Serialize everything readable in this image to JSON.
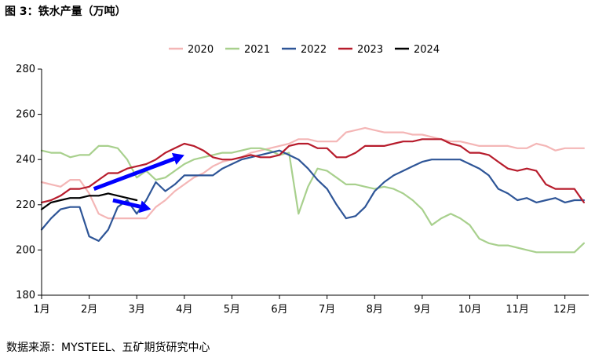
{
  "header": {
    "title": "图 3：铁水产量（万吨）"
  },
  "footer": {
    "source": "数据来源：MYSTEEL、五矿期货研究中心"
  },
  "chart_data": {
    "type": "line",
    "title": "图 3：铁水产量（万吨）",
    "xlabel": "",
    "ylabel": "",
    "ylim": [
      180,
      280
    ],
    "yticks": [
      180,
      200,
      220,
      240,
      260,
      280
    ],
    "xlim": [
      1,
      12.5
    ],
    "xticks": [
      "1月",
      "2月",
      "3月",
      "4月",
      "5月",
      "6月",
      "7月",
      "8月",
      "9月",
      "10月",
      "11月",
      "12月"
    ],
    "grid": false,
    "legend_position": "top",
    "series": [
      {
        "name": "2020",
        "color": "#F4B6B6",
        "x": [
          1,
          1.2,
          1.4,
          1.6,
          1.8,
          2.0,
          2.2,
          2.4,
          2.6,
          2.8,
          3.0,
          3.2,
          3.4,
          3.6,
          3.8,
          4.0,
          4.2,
          4.4,
          4.6,
          4.8,
          5.0,
          5.2,
          5.4,
          5.6,
          5.8,
          6.0,
          6.2,
          6.4,
          6.6,
          6.8,
          7.0,
          7.2,
          7.4,
          7.6,
          7.8,
          8.0,
          8.2,
          8.4,
          8.6,
          8.8,
          9.0,
          9.2,
          9.4,
          9.6,
          9.8,
          10.0,
          10.2,
          10.4,
          10.6,
          10.8,
          11.0,
          11.2,
          11.4,
          11.6,
          11.8,
          12.0,
          12.2,
          12.4
        ],
        "y": [
          230,
          229,
          228,
          231,
          231,
          225,
          216,
          214,
          214,
          214,
          214,
          214,
          219,
          222,
          226,
          229,
          232,
          234,
          237,
          239,
          240,
          241,
          243,
          244,
          245,
          246,
          247,
          249,
          249,
          248,
          248,
          248,
          252,
          253,
          254,
          253,
          252,
          252,
          252,
          251,
          251,
          250,
          249,
          248,
          248,
          247,
          246,
          246,
          246,
          246,
          245,
          245,
          247,
          246,
          244,
          245,
          245,
          245
        ]
      },
      {
        "name": "2021",
        "color": "#A8D08D",
        "x": [
          1,
          1.2,
          1.4,
          1.6,
          1.8,
          2.0,
          2.2,
          2.4,
          2.6,
          2.8,
          3.0,
          3.2,
          3.4,
          3.6,
          3.8,
          4.0,
          4.2,
          4.4,
          4.6,
          4.8,
          5.0,
          5.2,
          5.4,
          5.6,
          5.8,
          6.0,
          6.2,
          6.4,
          6.6,
          6.8,
          7.0,
          7.2,
          7.4,
          7.6,
          7.8,
          8.0,
          8.2,
          8.4,
          8.6,
          8.8,
          9.0,
          9.2,
          9.4,
          9.6,
          9.8,
          10.0,
          10.2,
          10.4,
          10.6,
          10.8,
          11.0,
          11.2,
          11.4,
          11.6,
          11.8,
          12.0,
          12.2,
          12.4
        ],
        "y": [
          244,
          243,
          243,
          241,
          242,
          242,
          246,
          246,
          245,
          240,
          232,
          235,
          231,
          232,
          235,
          238,
          240,
          241,
          242,
          243,
          243,
          244,
          245,
          245,
          244,
          242,
          243,
          216,
          228,
          236,
          235,
          232,
          229,
          229,
          228,
          227,
          228,
          227,
          225,
          222,
          218,
          211,
          214,
          216,
          214,
          211,
          205,
          203,
          202,
          202,
          201,
          200,
          199,
          199,
          199,
          199,
          199,
          203
        ]
      },
      {
        "name": "2022",
        "color": "#2E5597",
        "x": [
          1,
          1.2,
          1.4,
          1.6,
          1.8,
          2.0,
          2.2,
          2.4,
          2.6,
          2.8,
          3.0,
          3.2,
          3.4,
          3.6,
          3.8,
          4.0,
          4.2,
          4.4,
          4.6,
          4.8,
          5.0,
          5.2,
          5.4,
          5.6,
          5.8,
          6.0,
          6.2,
          6.4,
          6.6,
          6.8,
          7.0,
          7.2,
          7.4,
          7.6,
          7.8,
          8.0,
          8.2,
          8.4,
          8.6,
          8.8,
          9.0,
          9.2,
          9.4,
          9.6,
          9.8,
          10.0,
          10.2,
          10.4,
          10.6,
          10.8,
          11.0,
          11.2,
          11.4,
          11.6,
          11.8,
          12.0,
          12.2,
          12.4
        ],
        "y": [
          209,
          214,
          218,
          219,
          219,
          206,
          204,
          209,
          219,
          222,
          216,
          222,
          230,
          226,
          229,
          233,
          233,
          233,
          233,
          236,
          238,
          240,
          241,
          242,
          243,
          244,
          242,
          240,
          236,
          231,
          227,
          220,
          214,
          215,
          219,
          226,
          230,
          233,
          235,
          237,
          239,
          240,
          240,
          240,
          240,
          238,
          236,
          233,
          227,
          225,
          222,
          223,
          221,
          222,
          223,
          221,
          222,
          222
        ]
      },
      {
        "name": "2023",
        "color": "#B71C2C",
        "x": [
          1,
          1.2,
          1.4,
          1.6,
          1.8,
          2.0,
          2.2,
          2.4,
          2.6,
          2.8,
          3.0,
          3.2,
          3.4,
          3.6,
          3.8,
          4.0,
          4.2,
          4.4,
          4.6,
          4.8,
          5.0,
          5.2,
          5.4,
          5.6,
          5.8,
          6.0,
          6.2,
          6.4,
          6.6,
          6.8,
          7.0,
          7.2,
          7.4,
          7.6,
          7.8,
          8.0,
          8.2,
          8.4,
          8.6,
          8.8,
          9.0,
          9.2,
          9.4,
          9.6,
          9.8,
          10.0,
          10.2,
          10.4,
          10.6,
          10.8,
          11.0,
          11.2,
          11.4,
          11.6,
          11.8,
          12.0,
          12.2,
          12.4
        ],
        "y": [
          221,
          222,
          224,
          227,
          227,
          228,
          231,
          234,
          234,
          236,
          237,
          238,
          240,
          243,
          245,
          247,
          246,
          244,
          241,
          240,
          240,
          241,
          242,
          241,
          241,
          242,
          246,
          247,
          247,
          245,
          245,
          241,
          241,
          243,
          246,
          246,
          246,
          247,
          248,
          248,
          249,
          249,
          249,
          247,
          246,
          243,
          243,
          242,
          239,
          236,
          235,
          236,
          235,
          229,
          227,
          227,
          227,
          221
        ]
      },
      {
        "name": "2024",
        "color": "#000000",
        "x": [
          1,
          1.2,
          1.4,
          1.6,
          1.8,
          2.0,
          2.2,
          2.4,
          2.6,
          2.8,
          3.0
        ],
        "y": [
          218,
          221,
          222,
          223,
          223,
          224,
          224,
          225,
          224,
          223,
          222
        ]
      }
    ],
    "annotations": [
      {
        "type": "arrow",
        "color": "#0000FF",
        "from": [
          2.1,
          227
        ],
        "to": [
          4.0,
          242
        ]
      },
      {
        "type": "arrow",
        "color": "#0000FF",
        "from": [
          2.5,
          222
        ],
        "to": [
          3.3,
          218
        ]
      }
    ]
  }
}
